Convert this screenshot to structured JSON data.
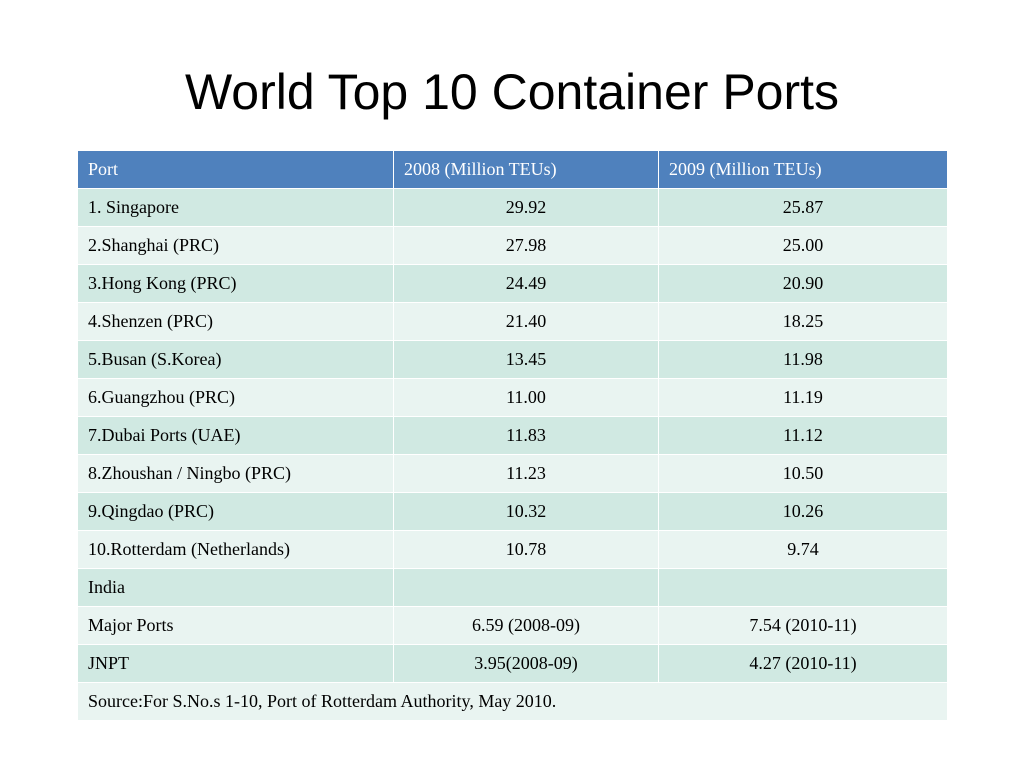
{
  "title": "World Top 10 Container Ports",
  "table": {
    "headers": [
      "Port",
      "2008 (Million TEUs)",
      "2009 (Million TEUs)"
    ],
    "rows": [
      [
        "1. Singapore",
        "29.92",
        "25.87"
      ],
      [
        "2.Shanghai (PRC)",
        "27.98",
        "25.00"
      ],
      [
        "3.Hong Kong (PRC)",
        "24.49",
        "20.90"
      ],
      [
        "4.Shenzen (PRC)",
        "21.40",
        "18.25"
      ],
      [
        "5.Busan (S.Korea)",
        "13.45",
        "11.98"
      ],
      [
        "6.Guangzhou (PRC)",
        "11.00",
        "11.19"
      ],
      [
        "7.Dubai Ports (UAE)",
        "11.83",
        "11.12"
      ],
      [
        "8.Zhoushan / Ningbo (PRC)",
        "11.23",
        "10.50"
      ],
      [
        "9.Qingdao (PRC)",
        "10.32",
        "10.26"
      ],
      [
        "10.Rotterdam (Netherlands)",
        "10.78",
        "9.74"
      ],
      [
        " India",
        "",
        ""
      ],
      [
        " Major Ports",
        "6.59 (2008-09)",
        "7.54 (2010-11)"
      ],
      [
        "  JNPT",
        "3.95(2008-09)",
        "4.27 (2010-11)"
      ]
    ],
    "source": "Source:For  S.No.s 1-10, Port of Rotterdam Authority, May 2010."
  },
  "colors": {
    "header_bg": "#4f81bd",
    "row_dark": "#d0e9e2",
    "row_light": "#e9f4f1"
  }
}
